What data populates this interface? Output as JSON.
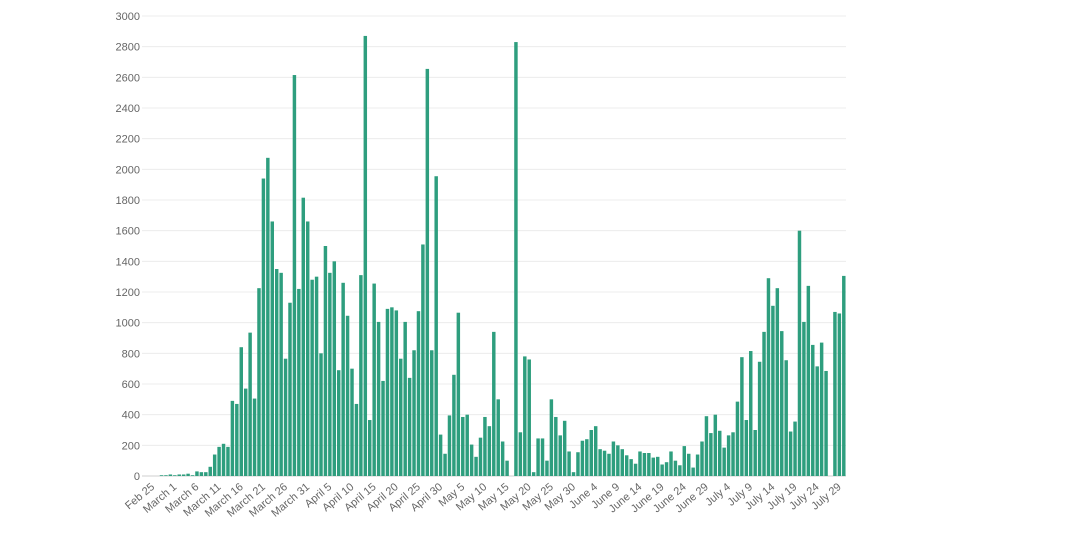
{
  "chart_data": {
    "type": "bar",
    "title": "",
    "xlabel": "",
    "ylabel": "",
    "ylim": [
      0,
      3000
    ],
    "grid": true,
    "bar_color": "#2e9e7e",
    "yticks": [
      0,
      200,
      400,
      600,
      800,
      1000,
      1200,
      1400,
      1600,
      1800,
      2000,
      2200,
      2400,
      2600,
      2800,
      3000
    ],
    "x_tick_labels": [
      {
        "index": 0,
        "label": "Feb 25"
      },
      {
        "index": 5,
        "label": "March 1"
      },
      {
        "index": 10,
        "label": "March 6"
      },
      {
        "index": 15,
        "label": "March 11"
      },
      {
        "index": 20,
        "label": "March 16"
      },
      {
        "index": 25,
        "label": "March 21"
      },
      {
        "index": 30,
        "label": "March 26"
      },
      {
        "index": 35,
        "label": "March 31"
      },
      {
        "index": 40,
        "label": "April 5"
      },
      {
        "index": 45,
        "label": "April 10"
      },
      {
        "index": 50,
        "label": "April 15"
      },
      {
        "index": 55,
        "label": "April 20"
      },
      {
        "index": 60,
        "label": "April 25"
      },
      {
        "index": 65,
        "label": "April 30"
      },
      {
        "index": 70,
        "label": "May 5"
      },
      {
        "index": 75,
        "label": "May 10"
      },
      {
        "index": 80,
        "label": "May 15"
      },
      {
        "index": 85,
        "label": "May 20"
      },
      {
        "index": 90,
        "label": "May 25"
      },
      {
        "index": 95,
        "label": "May 30"
      },
      {
        "index": 100,
        "label": "June 4"
      },
      {
        "index": 105,
        "label": "June 9"
      },
      {
        "index": 110,
        "label": "June 14"
      },
      {
        "index": 115,
        "label": "June 19"
      },
      {
        "index": 120,
        "label": "June 24"
      },
      {
        "index": 125,
        "label": "June 29"
      },
      {
        "index": 130,
        "label": "July 4"
      },
      {
        "index": 135,
        "label": "July 9"
      },
      {
        "index": 140,
        "label": "July 14"
      },
      {
        "index": 145,
        "label": "July 19"
      },
      {
        "index": 150,
        "label": "July 24"
      },
      {
        "index": 155,
        "label": "July 29"
      }
    ],
    "values": [
      0,
      0,
      0,
      5,
      5,
      10,
      5,
      10,
      10,
      15,
      5,
      30,
      25,
      25,
      60,
      140,
      190,
      210,
      190,
      490,
      470,
      840,
      570,
      935,
      505,
      1225,
      1940,
      2075,
      1660,
      1350,
      1325,
      765,
      1130,
      2615,
      1220,
      1815,
      1660,
      1280,
      1300,
      800,
      1500,
      1325,
      1400,
      690,
      1260,
      1045,
      700,
      470,
      1310,
      2870,
      365,
      1255,
      1005,
      620,
      1090,
      1100,
      1080,
      765,
      1005,
      640,
      820,
      1075,
      1510,
      2655,
      820,
      1955,
      270,
      145,
      395,
      660,
      1065,
      385,
      400,
      205,
      125,
      250,
      385,
      325,
      940,
      500,
      225,
      100,
      0,
      2830,
      285,
      780,
      760,
      25,
      245,
      245,
      100,
      500,
      385,
      265,
      360,
      160,
      25,
      155,
      230,
      240,
      300,
      325,
      175,
      165,
      145,
      225,
      200,
      175,
      135,
      110,
      80,
      160,
      150,
      150,
      120,
      125,
      75,
      90,
      160,
      100,
      70,
      195,
      145,
      55,
      140,
      225,
      390,
      280,
      400,
      295,
      185,
      265,
      285,
      485,
      775,
      365,
      815,
      300,
      745,
      940,
      1290,
      1110,
      1225,
      945,
      755,
      290,
      355,
      1600,
      1005,
      1240,
      855,
      715,
      870,
      685,
      0,
      1070,
      1060,
      1305
    ]
  }
}
